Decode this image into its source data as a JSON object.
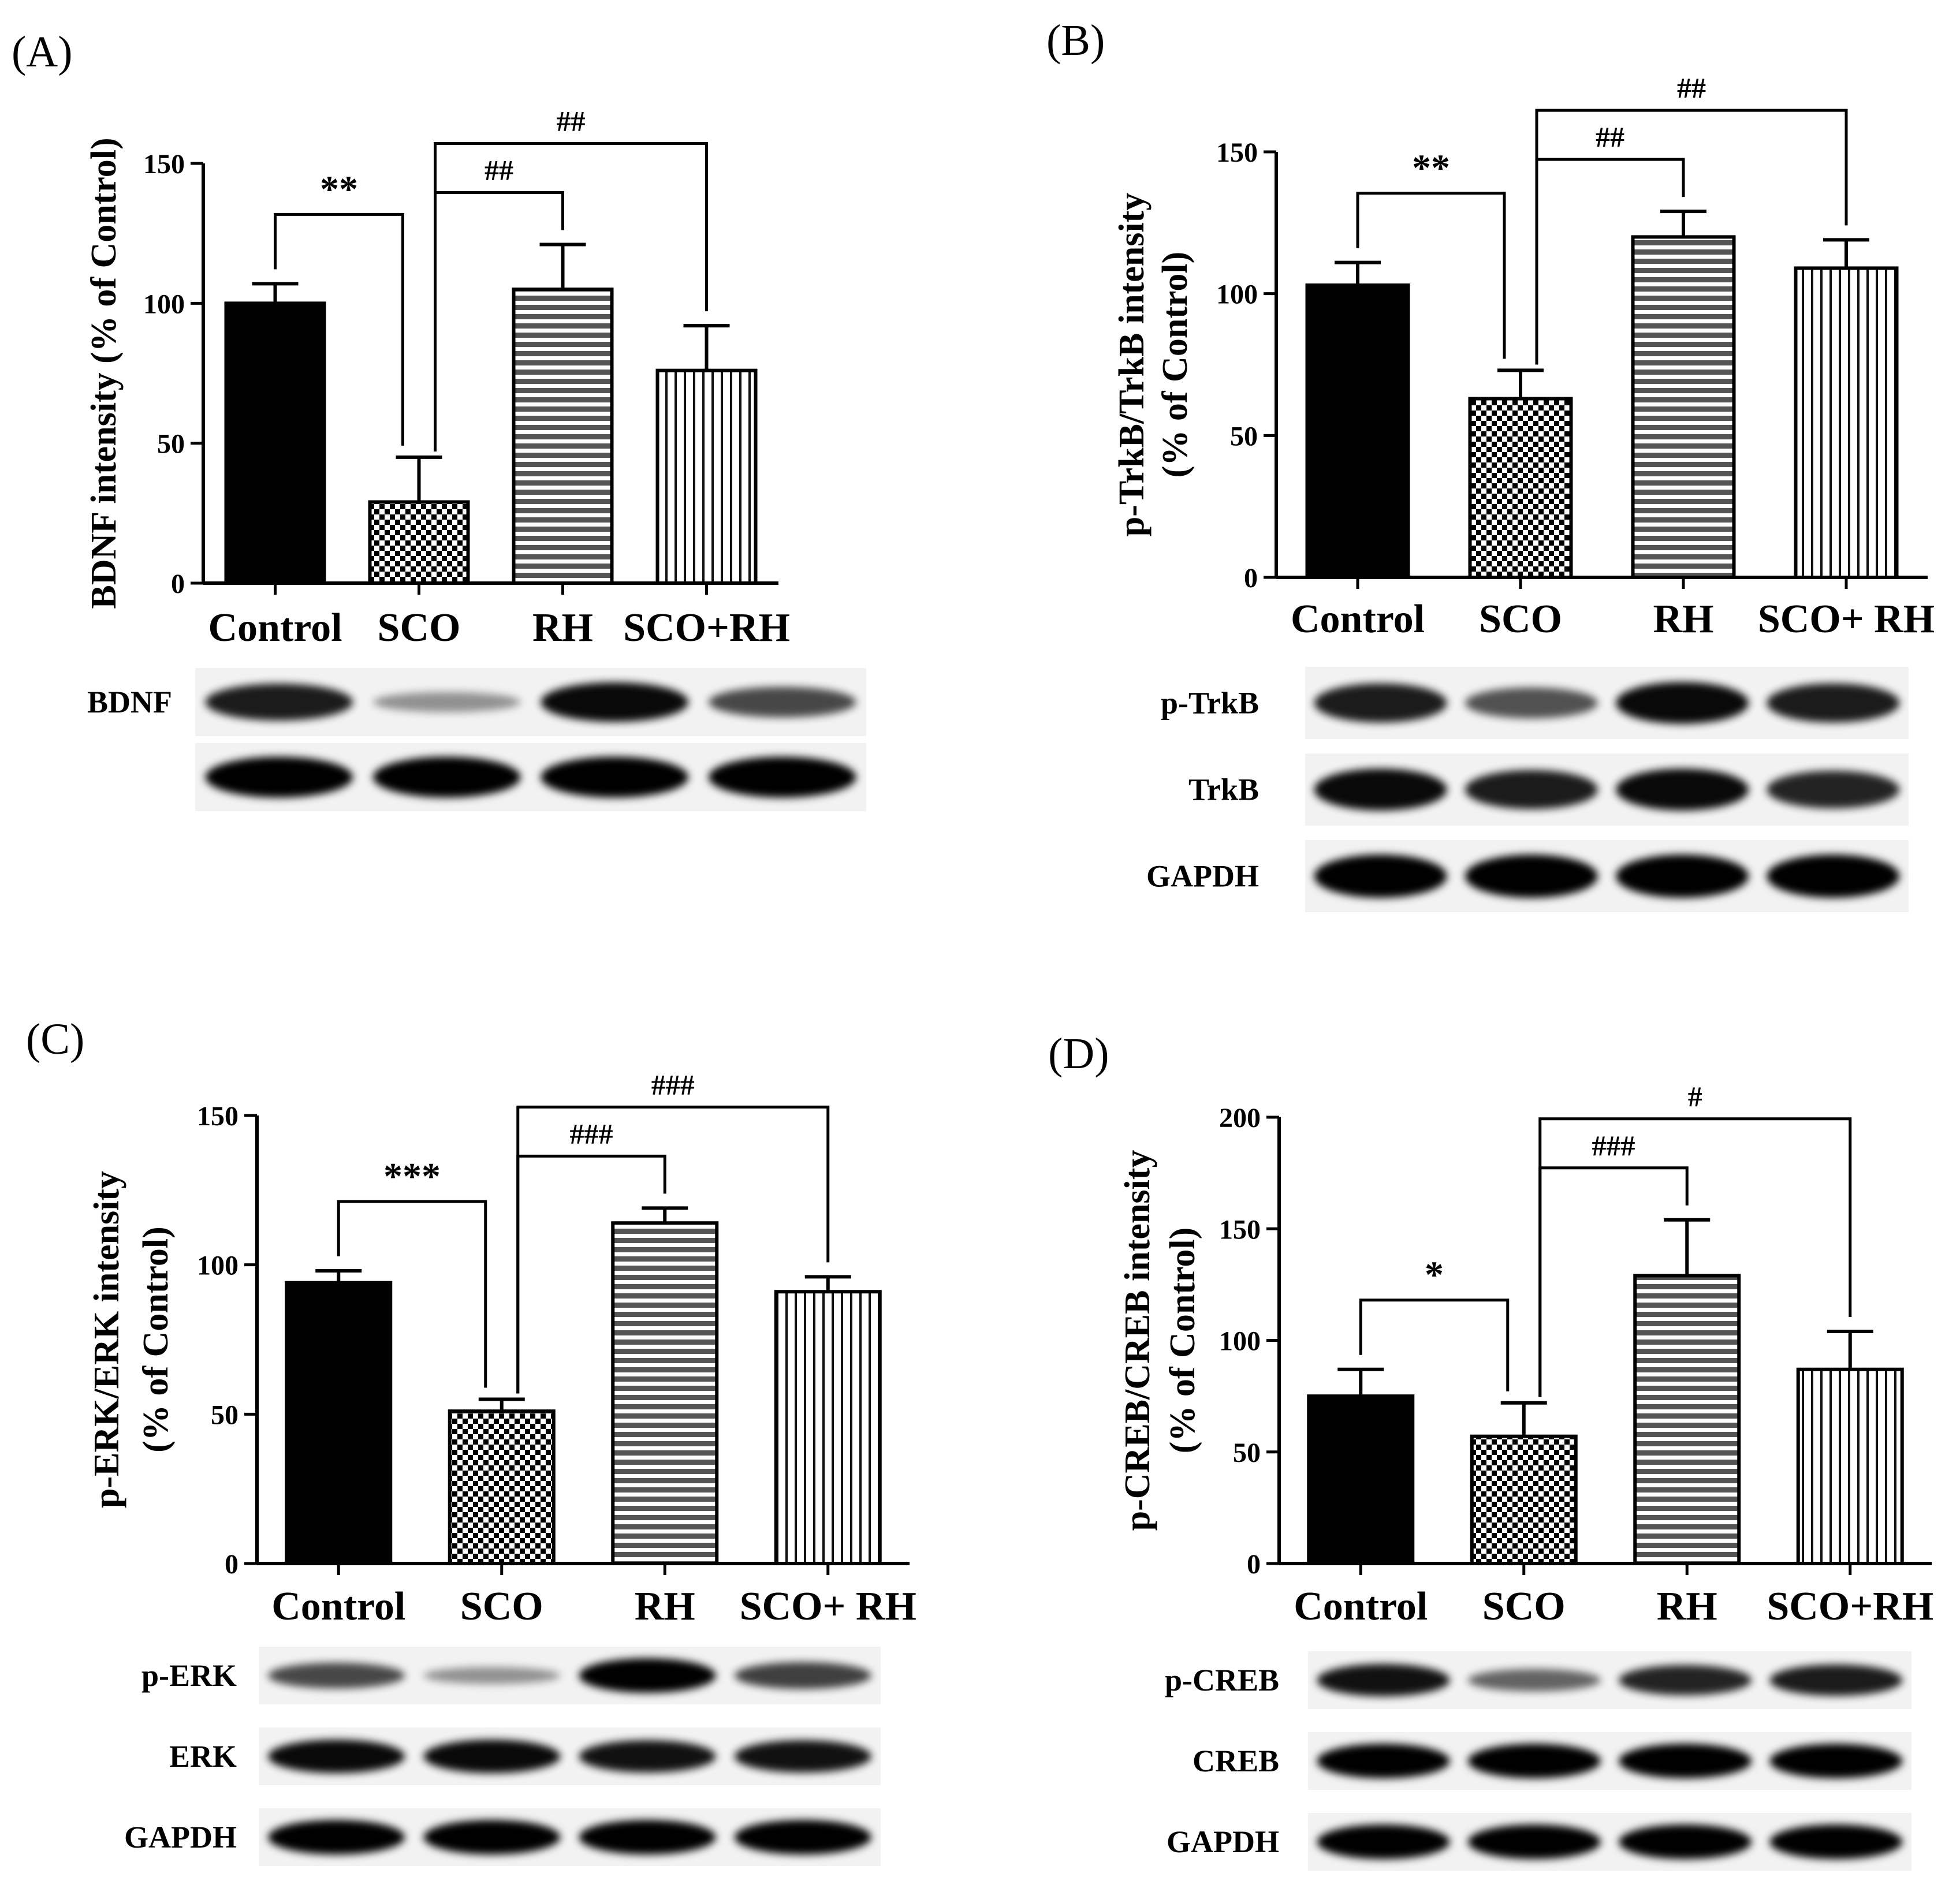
{
  "chart_data": [
    {
      "panel": "(A)",
      "type": "bar",
      "ylabel": [
        "BDNF intensity (% of Control)"
      ],
      "categories": [
        "Control",
        "SCO",
        "RH",
        "SCO+RH"
      ],
      "values": [
        100,
        29,
        105,
        76
      ],
      "errors": [
        7,
        16,
        16,
        16
      ],
      "ylim": [
        0,
        150
      ],
      "yticks": [
        0,
        50,
        100,
        150
      ],
      "patterns": [
        "solid",
        "checker",
        "hstripe",
        "vstripe"
      ],
      "significance": [
        {
          "from": 0,
          "to": 1,
          "label": "**"
        },
        {
          "from": 1,
          "to": 2,
          "label": "##"
        },
        {
          "from": 1,
          "to": 3,
          "label": "##"
        }
      ],
      "blots": [
        {
          "label": "BDNF",
          "intensities": [
            0.85,
            0.2,
            0.95,
            0.6
          ]
        },
        {
          "label": "",
          "intensities": [
            1,
            1,
            1,
            1
          ]
        }
      ]
    },
    {
      "panel": "(B)",
      "type": "bar",
      "ylabel": [
        "p-TrkB/TrkB intensity",
        "(% of Control)"
      ],
      "categories": [
        "Control",
        "SCO",
        "RH",
        "SCO+ RH"
      ],
      "values": [
        103,
        63,
        120,
        109
      ],
      "errors": [
        8,
        10,
        9,
        10
      ],
      "ylim": [
        0,
        150
      ],
      "yticks": [
        0,
        50,
        100,
        150
      ],
      "patterns": [
        "solid",
        "checker",
        "hstripe",
        "vstripe"
      ],
      "significance": [
        {
          "from": 0,
          "to": 1,
          "label": "**"
        },
        {
          "from": 1,
          "to": 2,
          "label": "##"
        },
        {
          "from": 1,
          "to": 3,
          "label": "##"
        }
      ],
      "blots": [
        {
          "label": "p-TrkB",
          "intensities": [
            0.85,
            0.55,
            0.95,
            0.85
          ]
        },
        {
          "label": "TrkB",
          "intensities": [
            0.95,
            0.85,
            0.95,
            0.8
          ]
        },
        {
          "label": "GAPDH",
          "intensities": [
            1,
            1,
            1,
            1
          ]
        }
      ]
    },
    {
      "panel": "(C)",
      "type": "bar",
      "ylabel": [
        "p-ERK/ERK intensity",
        "(% of Control)"
      ],
      "categories": [
        "Control",
        "SCO",
        "RH",
        "SCO+ RH"
      ],
      "values": [
        94,
        51,
        114,
        91
      ],
      "errors": [
        4,
        4,
        5,
        5
      ],
      "ylim": [
        0,
        150
      ],
      "yticks": [
        0,
        50,
        100,
        150
      ],
      "patterns": [
        "solid",
        "checker",
        "hstripe",
        "vstripe"
      ],
      "significance": [
        {
          "from": 0,
          "to": 1,
          "label": "***"
        },
        {
          "from": 1,
          "to": 2,
          "label": "###"
        },
        {
          "from": 1,
          "to": 3,
          "label": "###"
        }
      ],
      "blots": [
        {
          "label": "p-ERK",
          "intensities": [
            0.6,
            0.2,
            1,
            0.65
          ]
        },
        {
          "label": "ERK",
          "intensities": [
            0.95,
            0.95,
            0.9,
            0.9
          ]
        },
        {
          "label": "GAPDH",
          "intensities": [
            1,
            1,
            1,
            1
          ]
        }
      ]
    },
    {
      "panel": "(D)",
      "type": "bar",
      "ylabel": [
        "p-CREB/CREB intensity",
        "(% of Control)"
      ],
      "categories": [
        "Control",
        "SCO",
        "RH",
        "SCO+RH"
      ],
      "values": [
        75,
        57,
        129,
        87
      ],
      "errors": [
        12,
        15,
        25,
        17
      ],
      "ylim": [
        0,
        200
      ],
      "yticks": [
        0,
        50,
        100,
        150,
        200
      ],
      "patterns": [
        "solid",
        "checker",
        "hstripe",
        "vstripe"
      ],
      "significance": [
        {
          "from": 0,
          "to": 1,
          "label": "*"
        },
        {
          "from": 1,
          "to": 2,
          "label": "###"
        },
        {
          "from": 1,
          "to": 3,
          "label": "#"
        }
      ],
      "blots": [
        {
          "label": "p-CREB",
          "intensities": [
            0.9,
            0.45,
            0.8,
            0.85
          ]
        },
        {
          "label": "CREB",
          "intensities": [
            1,
            1,
            1,
            1
          ]
        },
        {
          "label": "GAPDH",
          "intensities": [
            1,
            1,
            1,
            1
          ]
        }
      ]
    }
  ]
}
